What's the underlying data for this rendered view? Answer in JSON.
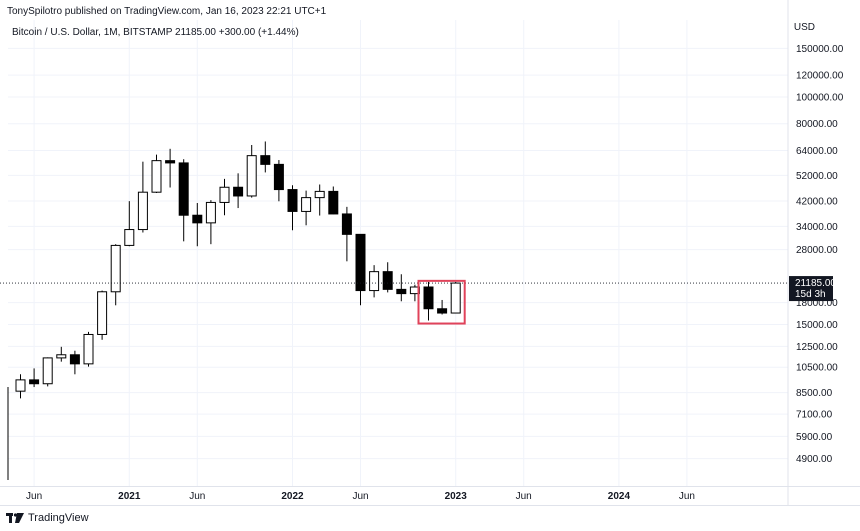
{
  "header": {
    "published_by": "TonySpilotro published on TradingView.com, Jan 16, 2023 22:21 UTC+1"
  },
  "symbol_line": "Bitcoin / U.S. Dollar, 1M, BITSTAMP  21185.00  +300.00 (+1.44%)",
  "currency": "USD",
  "current_price": {
    "value": "21185.00",
    "countdown": "15d 3h"
  },
  "footer": {
    "brand": "TradingView"
  },
  "chart_data": {
    "type": "candlestick",
    "title": "Bitcoin / U.S. Dollar, 1M, BITSTAMP",
    "scale": "log",
    "ylim": [
      3900,
      190000
    ],
    "y_ticks": [
      150000,
      120000,
      100000,
      80000,
      64000,
      52000,
      42000,
      34000,
      28000,
      18000,
      15000,
      12500,
      10500,
      8500,
      7100,
      5900,
      4900
    ],
    "y_tick_labels": [
      "150000.00",
      "120000.00",
      "100000.00",
      "80000.00",
      "64000.00",
      "52000.00",
      "42000.00",
      "34000.00",
      "28000.00",
      "18000.00",
      "15000.00",
      "12500.00",
      "10500.00",
      "8500.00",
      "7100.00",
      "5900.00",
      "4900.00"
    ],
    "x_labels": [
      "Jun",
      "2021",
      "Jun",
      "2022",
      "Jun",
      "2023",
      "Jun",
      "2024",
      "Jun"
    ],
    "candles": [
      {
        "month": "2020-05",
        "o": 8600,
        "h": 9900,
        "l": 8100,
        "c": 9450
      },
      {
        "month": "2020-06",
        "o": 9450,
        "h": 10400,
        "l": 8900,
        "c": 9150
      },
      {
        "month": "2020-07",
        "o": 9150,
        "h": 11400,
        "l": 8950,
        "c": 11350
      },
      {
        "month": "2020-08",
        "o": 11350,
        "h": 12450,
        "l": 11000,
        "c": 11650
      },
      {
        "month": "2020-09",
        "o": 11650,
        "h": 12050,
        "l": 9900,
        "c": 10800
      },
      {
        "month": "2020-10",
        "o": 10800,
        "h": 14100,
        "l": 10550,
        "c": 13800
      },
      {
        "month": "2020-11",
        "o": 13800,
        "h": 19900,
        "l": 13200,
        "c": 19700
      },
      {
        "month": "2020-12",
        "o": 19700,
        "h": 29300,
        "l": 17600,
        "c": 29000
      },
      {
        "month": "2021-01",
        "o": 29000,
        "h": 41950,
        "l": 28800,
        "c": 33100
      },
      {
        "month": "2021-02",
        "o": 33100,
        "h": 58300,
        "l": 32300,
        "c": 45200
      },
      {
        "month": "2021-03",
        "o": 45200,
        "h": 61800,
        "l": 44900,
        "c": 58800
      },
      {
        "month": "2021-04",
        "o": 58800,
        "h": 64900,
        "l": 47000,
        "c": 57700
      },
      {
        "month": "2021-05",
        "o": 57700,
        "h": 59500,
        "l": 30000,
        "c": 37300
      },
      {
        "month": "2021-06",
        "o": 37300,
        "h": 41300,
        "l": 28800,
        "c": 35000
      },
      {
        "month": "2021-07",
        "o": 35000,
        "h": 42300,
        "l": 29300,
        "c": 41500
      },
      {
        "month": "2021-08",
        "o": 41500,
        "h": 50500,
        "l": 37300,
        "c": 47100
      },
      {
        "month": "2021-09",
        "o": 47100,
        "h": 52900,
        "l": 39600,
        "c": 43800
      },
      {
        "month": "2021-10",
        "o": 43800,
        "h": 67000,
        "l": 43200,
        "c": 61300
      },
      {
        "month": "2021-11",
        "o": 61300,
        "h": 69000,
        "l": 53300,
        "c": 57000
      },
      {
        "month": "2021-12",
        "o": 57000,
        "h": 59100,
        "l": 41900,
        "c": 46200
      },
      {
        "month": "2022-01",
        "o": 46200,
        "h": 47900,
        "l": 32900,
        "c": 38500
      },
      {
        "month": "2022-02",
        "o": 38500,
        "h": 45800,
        "l": 34300,
        "c": 43200
      },
      {
        "month": "2022-03",
        "o": 43200,
        "h": 48200,
        "l": 37200,
        "c": 45500
      },
      {
        "month": "2022-04",
        "o": 45500,
        "h": 47400,
        "l": 37600,
        "c": 37700
      },
      {
        "month": "2022-05",
        "o": 37700,
        "h": 40000,
        "l": 25400,
        "c": 31800
      },
      {
        "month": "2022-06",
        "o": 31800,
        "h": 31900,
        "l": 17600,
        "c": 19900
      },
      {
        "month": "2022-07",
        "o": 19900,
        "h": 24600,
        "l": 18800,
        "c": 23300
      },
      {
        "month": "2022-08",
        "o": 23300,
        "h": 25200,
        "l": 19600,
        "c": 20100
      },
      {
        "month": "2022-09",
        "o": 20100,
        "h": 22800,
        "l": 18200,
        "c": 19400
      },
      {
        "month": "2022-10",
        "o": 19400,
        "h": 20900,
        "l": 18200,
        "c": 20500
      },
      {
        "month": "2022-11",
        "o": 20500,
        "h": 21400,
        "l": 15500,
        "c": 17100
      },
      {
        "month": "2022-12",
        "o": 17100,
        "h": 18400,
        "l": 16300,
        "c": 16500
      },
      {
        "month": "2023-01",
        "o": 16500,
        "h": 21400,
        "l": 16500,
        "c": 21185
      }
    ],
    "highlight_box": {
      "from": "2022-11",
      "to": "2023-01",
      "price_low": 15500,
      "price_high": 21400
    },
    "current_price_line": 21185
  }
}
